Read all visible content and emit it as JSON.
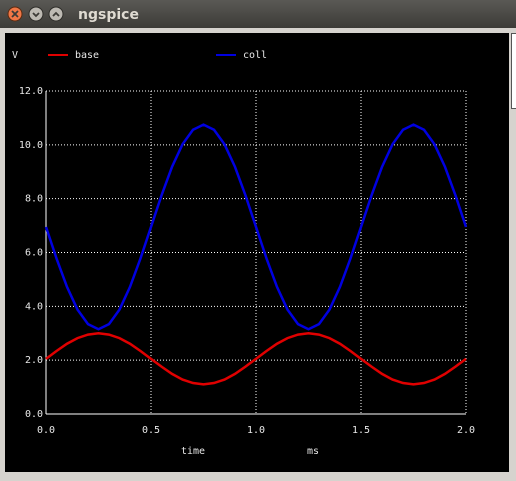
{
  "window": {
    "title": "ngspice"
  },
  "chart_data": {
    "type": "line",
    "ylabel": "V",
    "xlabel": "time",
    "xunit": "ms",
    "x": [
      0,
      0.05,
      0.1,
      0.15,
      0.2,
      0.25,
      0.3,
      0.35,
      0.4,
      0.45,
      0.5,
      0.55,
      0.6,
      0.65,
      0.7,
      0.75,
      0.8,
      0.85,
      0.9,
      0.95,
      1.0,
      1.05,
      1.1,
      1.15,
      1.2,
      1.25,
      1.3,
      1.35,
      1.4,
      1.45,
      1.5,
      1.55,
      1.6,
      1.65,
      1.7,
      1.75,
      1.8,
      1.85,
      1.9,
      1.95,
      2.0
    ],
    "series": [
      {
        "name": "base",
        "color": "#e00000",
        "values": [
          2.05,
          2.34,
          2.61,
          2.82,
          2.95,
          3.0,
          2.95,
          2.82,
          2.61,
          2.34,
          2.05,
          1.76,
          1.49,
          1.28,
          1.15,
          1.1,
          1.15,
          1.28,
          1.49,
          1.76,
          2.05,
          2.34,
          2.61,
          2.82,
          2.95,
          3.0,
          2.95,
          2.82,
          2.61,
          2.34,
          2.05,
          1.76,
          1.49,
          1.28,
          1.15,
          1.1,
          1.15,
          1.28,
          1.49,
          1.76,
          2.05
        ]
      },
      {
        "name": "coll",
        "color": "#0000e0",
        "values": [
          6.95,
          5.78,
          4.72,
          3.88,
          3.34,
          3.15,
          3.34,
          3.88,
          4.72,
          5.78,
          6.95,
          8.12,
          9.18,
          10.02,
          10.56,
          10.75,
          10.56,
          10.02,
          9.18,
          8.12,
          6.95,
          5.78,
          4.72,
          3.88,
          3.34,
          3.15,
          3.34,
          3.88,
          4.72,
          5.78,
          6.95,
          8.12,
          9.18,
          10.02,
          10.56,
          10.75,
          10.56,
          10.02,
          9.18,
          8.12,
          6.95
        ]
      }
    ],
    "xlim": [
      0,
      2
    ],
    "xticks": [
      {
        "value": 0,
        "label": "0.0"
      },
      {
        "value": 0.5,
        "label": "0.5"
      },
      {
        "value": 1,
        "label": "1.0"
      },
      {
        "value": 1.5,
        "label": "1.5"
      },
      {
        "value": 2,
        "label": "2.0"
      }
    ],
    "ylim": [
      0,
      12
    ],
    "yticks": [
      {
        "value": 0,
        "label": "0.0"
      },
      {
        "value": 2,
        "label": "2.0"
      },
      {
        "value": 4,
        "label": "4.0"
      },
      {
        "value": 6,
        "label": "6.0"
      },
      {
        "value": 8,
        "label": "8.0"
      },
      {
        "value": 10,
        "label": "10.0"
      },
      {
        "value": 12,
        "label": "12.0"
      }
    ],
    "grid": true
  }
}
